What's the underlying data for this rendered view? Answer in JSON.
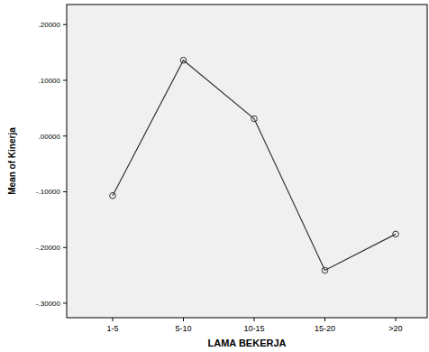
{
  "chart_data": {
    "type": "line",
    "x_label": "LAMA BEKERJA",
    "y_label": "Mean of Kinerja",
    "categories": [
      "1-5",
      "5-10",
      "10-15",
      "15-20",
      ">20"
    ],
    "values": [
      -0.107,
      0.136,
      0.031,
      -0.241,
      -0.176
    ],
    "color": "#333333",
    "marker": "circle",
    "line_style": "solid",
    "grid": false,
    "ylim": [
      -0.326,
      0.236
    ],
    "yticks": [
      {
        "value": 0.2,
        "label": ".20000"
      },
      {
        "value": 0.1,
        "label": ".10000"
      },
      {
        "value": 0,
        "label": ".00000"
      },
      {
        "value": -0.1,
        "label": "-.10000"
      },
      {
        "value": -0.2,
        "label": "-.20000"
      },
      {
        "value": -0.3,
        "label": "-.30000"
      }
    ]
  }
}
